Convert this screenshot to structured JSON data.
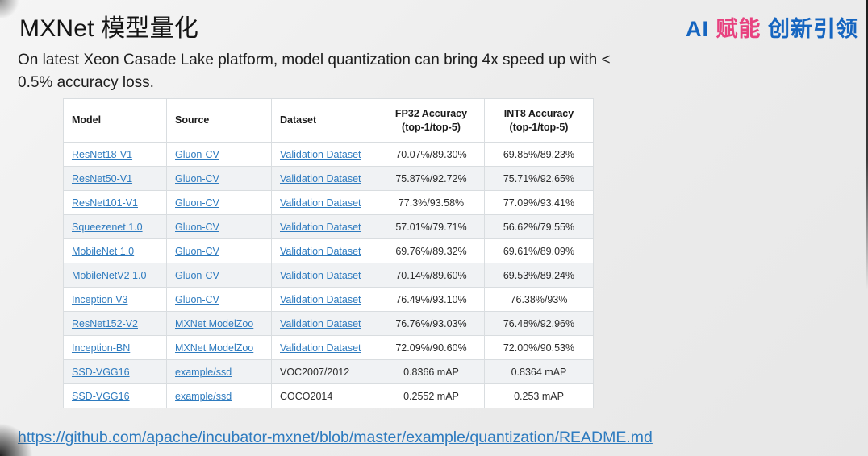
{
  "header": {
    "title": "MXNet 模型量化",
    "logo": {
      "part_ai": "AI",
      "part_funeng": "赋能",
      "part_rest": "创新引领"
    }
  },
  "intro": {
    "line1": "On latest Xeon Casade Lake platform, model quantization can bring 4x speed up with <",
    "line2": "0.5% accuracy loss."
  },
  "colors": {
    "logo_blue": "#1565c0",
    "logo_pink": "#e8417f",
    "link_blue": "#2e7bbf"
  },
  "table": {
    "headers": [
      "Model",
      "Source",
      "Dataset",
      "FP32 Accuracy (top-1/top-5)",
      "INT8 Accuracy (top-1/top-5)"
    ],
    "rows": [
      {
        "model": "ResNet18-V1",
        "source": "Gluon-CV",
        "dataset": "Validation Dataset",
        "dataset_link": true,
        "fp32": "70.07%/89.30%",
        "int8": "69.85%/89.23%"
      },
      {
        "model": "ResNet50-V1",
        "source": "Gluon-CV",
        "dataset": "Validation Dataset",
        "dataset_link": true,
        "fp32": "75.87%/92.72%",
        "int8": "75.71%/92.65%"
      },
      {
        "model": "ResNet101-V1",
        "source": "Gluon-CV",
        "dataset": "Validation Dataset",
        "dataset_link": true,
        "fp32": "77.3%/93.58%",
        "int8": "77.09%/93.41%"
      },
      {
        "model": "Squeezenet 1.0",
        "source": "Gluon-CV",
        "dataset": "Validation Dataset",
        "dataset_link": true,
        "fp32": "57.01%/79.71%",
        "int8": "56.62%/79.55%"
      },
      {
        "model": "MobileNet 1.0",
        "source": "Gluon-CV",
        "dataset": "Validation Dataset",
        "dataset_link": true,
        "fp32": "69.76%/89.32%",
        "int8": "69.61%/89.09%"
      },
      {
        "model": "MobileNetV2 1.0",
        "source": "Gluon-CV",
        "dataset": "Validation Dataset",
        "dataset_link": true,
        "fp32": "70.14%/89.60%",
        "int8": "69.53%/89.24%"
      },
      {
        "model": "Inception V3",
        "source": "Gluon-CV",
        "dataset": "Validation Dataset",
        "dataset_link": true,
        "fp32": "76.49%/93.10%",
        "int8": "76.38%/93%"
      },
      {
        "model": "ResNet152-V2",
        "source": "MXNet ModelZoo",
        "dataset": "Validation Dataset",
        "dataset_link": true,
        "fp32": "76.76%/93.03%",
        "int8": "76.48%/92.96%"
      },
      {
        "model": "Inception-BN",
        "source": "MXNet ModelZoo",
        "dataset": "Validation Dataset",
        "dataset_link": true,
        "fp32": "72.09%/90.60%",
        "int8": "72.00%/90.53%"
      },
      {
        "model": "SSD-VGG16",
        "source": "example/ssd",
        "dataset": "VOC2007/2012",
        "dataset_link": false,
        "fp32": "0.8366 mAP",
        "int8": "0.8364 mAP"
      },
      {
        "model": "SSD-VGG16",
        "source": "example/ssd",
        "dataset": "COCO2014",
        "dataset_link": false,
        "fp32": "0.2552 mAP",
        "int8": "0.253 mAP"
      }
    ]
  },
  "footer": {
    "url": "https://github.com/apache/incubator-mxnet/blob/master/example/quantization/README.md"
  }
}
